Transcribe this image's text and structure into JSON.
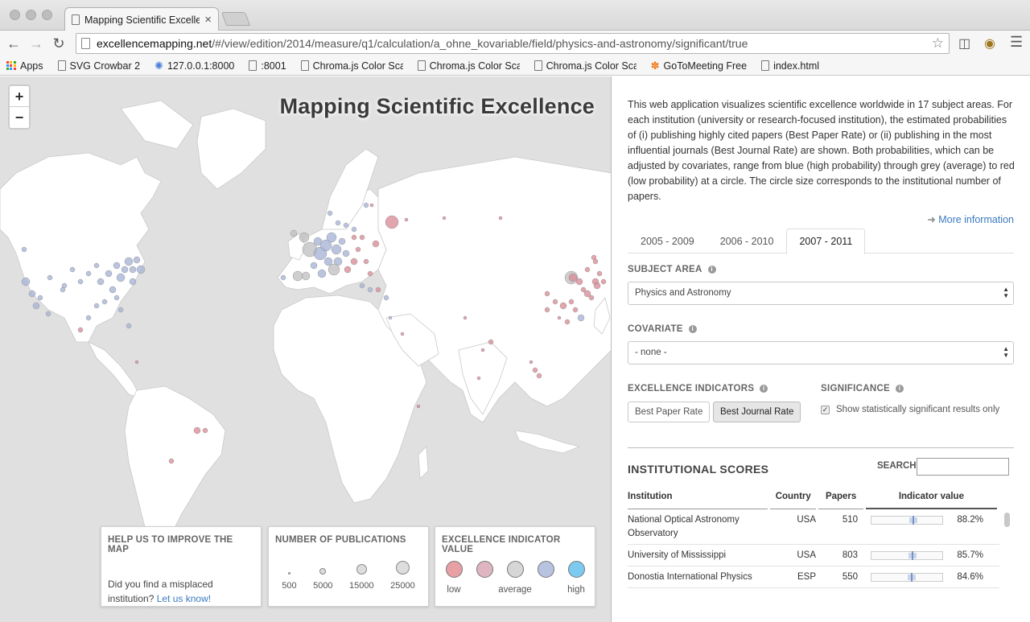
{
  "browser": {
    "tab_title": "Mapping Scientific Excellen",
    "url_host": "excellencemapping.net",
    "url_path": "/#/view/edition/2014/measure/q1/calculation/a_ohne_kovariable/field/physics-and-astronomy/significant/true",
    "bookmarks": [
      {
        "label": "Apps",
        "icon": "apps-grid-icon"
      },
      {
        "label": "SVG Crowbar 2",
        "icon": "page-icon"
      },
      {
        "label": "127.0.0.1:8000",
        "icon": "gear-colorful-icon"
      },
      {
        "label": ":8001",
        "icon": "page-icon"
      },
      {
        "label": "Chroma.js Color Scal",
        "icon": "page-icon"
      },
      {
        "label": "Chroma.js Color Scal",
        "icon": "page-icon"
      },
      {
        "label": "Chroma.js Color Scal",
        "icon": "page-icon"
      },
      {
        "label": "GoToMeeting Free",
        "icon": "flower-icon"
      },
      {
        "label": "index.html",
        "icon": "page-icon"
      }
    ]
  },
  "map": {
    "title": "Mapping Scientific Excellence",
    "zoom_in": "+",
    "zoom_out": "−",
    "help": {
      "heading": "HELP US TO IMPROVE THE MAP",
      "text": "Did you find a misplaced institution?",
      "link": "Let us know!"
    },
    "publications": {
      "heading": "NUMBER OF PUBLICATIONS",
      "sizes": [
        "500",
        "5000",
        "15000",
        "25000"
      ]
    },
    "indicator": {
      "heading": "EXCELLENCE INDICATOR VALUE",
      "colors": [
        "#e8a0a4",
        "#dfb5c1",
        "#d6d6d6",
        "#b7c3e0",
        "#7ccaf0"
      ],
      "labels": [
        "low",
        "",
        "average",
        "",
        "high"
      ]
    }
  },
  "panel": {
    "intro": "This web application visualizes scientific excellence worldwide in 17 subject areas. For each institution (university or research-focused institution), the estimated probabilities of (i) publishing highly cited papers (Best Paper Rate) or (ii) publishing in the most influential journals (Best Journal Rate) are shown. Both probabilities, which can be adjusted by covariates, range from blue (high probability) through grey (average) to red (low probability) at a circle. The circle size corresponds to the institutional number of papers.",
    "more_info": "More information",
    "periods": [
      "2005 - 2009",
      "2006 - 2010",
      "2007 - 2011"
    ],
    "active_period": "2007 - 2011",
    "subject_label": "SUBJECT AREA",
    "subject_value": "Physics and Astronomy",
    "covariate_label": "COVARIATE",
    "covariate_value": "- none -",
    "indicators_label": "EXCELLENCE INDICATORS",
    "best_paper": "Best Paper Rate",
    "best_journal": "Best Journal Rate",
    "significance_label": "SIGNIFICANCE",
    "significance_text": "Show statistically significant results only",
    "significance_checked": true,
    "scores_title": "INSTITUTIONAL SCORES",
    "search_label": "SEARCH:",
    "search_value": "",
    "columns": [
      "Institution",
      "Country",
      "Papers",
      "Indicator value"
    ],
    "rows": [
      {
        "institution": "National Optical Astronomy Observatory",
        "country": "USA",
        "papers": "510",
        "value": "88.2%",
        "fraction": 0.882
      },
      {
        "institution": "University of Mississippi",
        "country": "USA",
        "papers": "803",
        "value": "85.7%",
        "fraction": 0.857
      },
      {
        "institution": "Donostia International Physics",
        "country": "ESP",
        "papers": "550",
        "value": "84.6%",
        "fraction": 0.846
      }
    ]
  }
}
